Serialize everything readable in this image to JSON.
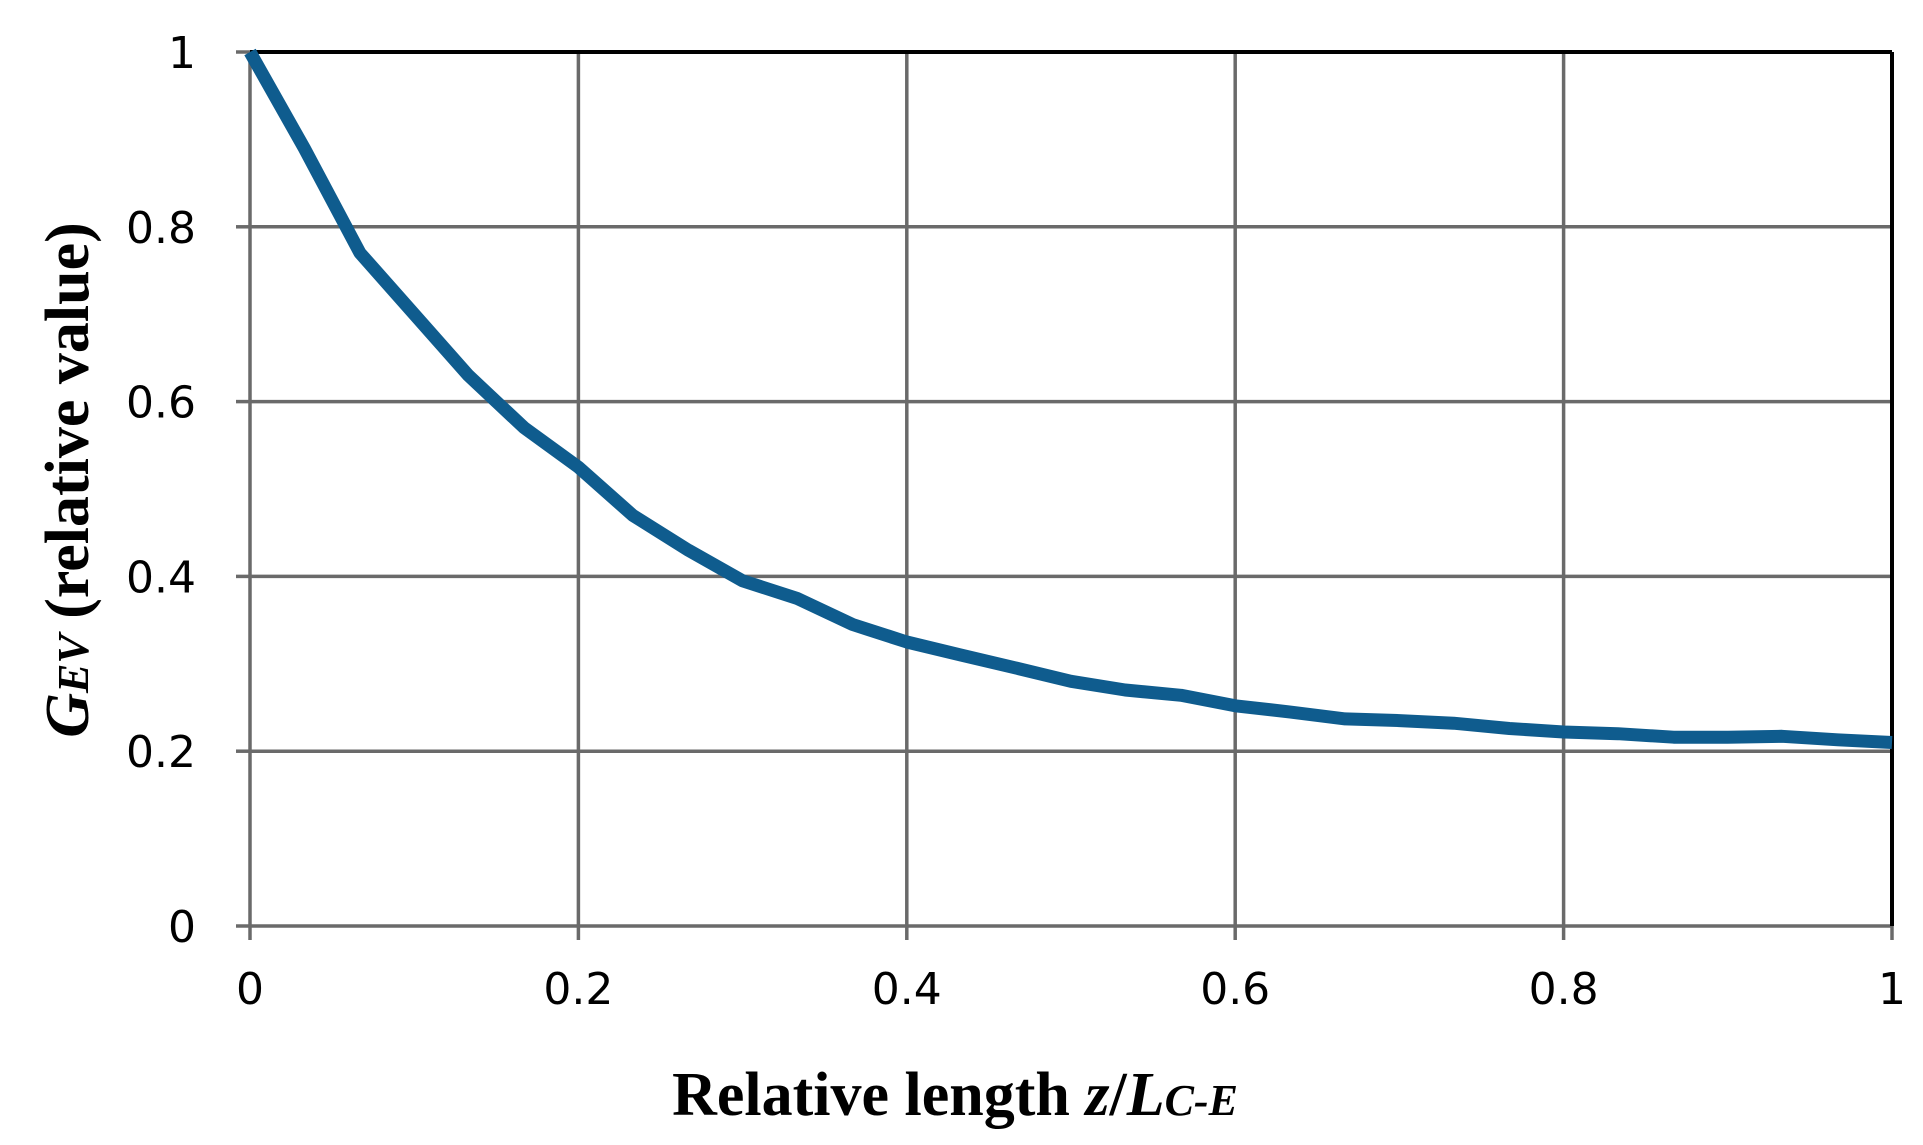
{
  "chart_data": {
    "type": "line",
    "title": "",
    "xlabel": {
      "prefix": "Relative length ",
      "var": "z",
      "sep": "/",
      "var2": "L",
      "sub": "C-E"
    },
    "ylabel": {
      "var": "G",
      "sub": "EV",
      "suffix": " (relative value)"
    },
    "xlim": [
      0,
      1
    ],
    "ylim": [
      0,
      1
    ],
    "xticks": [
      "0",
      "0.2",
      "0.4",
      "0.6",
      "0.8",
      "1"
    ],
    "yticks": [
      "0",
      "0.2",
      "0.4",
      "0.6",
      "0.8",
      "1"
    ],
    "grid": true,
    "legend": "none",
    "series": [
      {
        "color": "#0f5c8e",
        "x": [
          0,
          0.033,
          0.067,
          0.1,
          0.133,
          0.167,
          0.2,
          0.233,
          0.267,
          0.3,
          0.333,
          0.367,
          0.4,
          0.433,
          0.467,
          0.5,
          0.533,
          0.567,
          0.6,
          0.633,
          0.667,
          0.7,
          0.733,
          0.767,
          0.8,
          0.833,
          0.867,
          0.9,
          0.933,
          0.967,
          1.0
        ],
        "y": [
          1.0,
          0.89,
          0.77,
          0.7,
          0.63,
          0.57,
          0.525,
          0.47,
          0.43,
          0.395,
          0.375,
          0.345,
          0.325,
          0.31,
          0.295,
          0.28,
          0.27,
          0.264,
          0.252,
          0.245,
          0.237,
          0.235,
          0.232,
          0.226,
          0.222,
          0.22,
          0.216,
          0.216,
          0.217,
          0.213,
          0.21
        ]
      }
    ]
  }
}
